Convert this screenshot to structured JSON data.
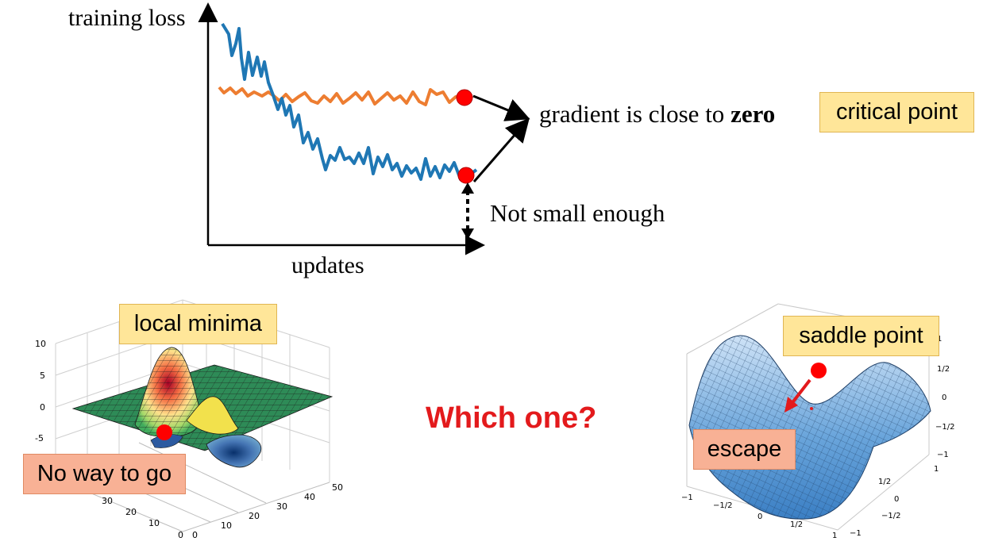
{
  "top_plot": {
    "ylabel": "training loss",
    "xlabel": "updates",
    "gradient_text": "gradient is close to ",
    "gradient_bold": "zero",
    "not_small_text": "Not small enough",
    "critical_point_label": "critical point",
    "colors": {
      "blue_curve": "#1f77b4",
      "orange_curve": "#ed7d31",
      "marker": "#ff0000"
    }
  },
  "left_surface": {
    "title_label": "local minima",
    "note_label": "No way to go",
    "z_ticks": [
      "10",
      "5",
      "0",
      "-5"
    ],
    "x_ticks": [
      "0",
      "10",
      "20",
      "30",
      "40",
      "50"
    ],
    "y_ticks": [
      "0",
      "10",
      "20",
      "30"
    ]
  },
  "center": {
    "question": "Which one?",
    "color": "#e31a1c"
  },
  "right_surface": {
    "title_label": "saddle point",
    "note_label": "escape",
    "z_ticks": [
      "1",
      "1/2",
      "0",
      "−1/2",
      "−1"
    ],
    "x_ticks": [
      "−1",
      "−1/2",
      "0",
      "1/2",
      "1"
    ],
    "y_ticks": [
      "1",
      "1/2",
      "0",
      "−1/2",
      "−1"
    ]
  }
}
